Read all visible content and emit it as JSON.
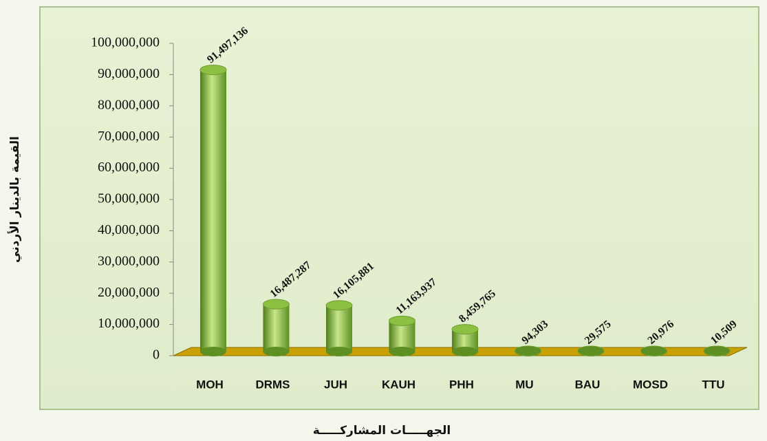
{
  "chart_data": {
    "type": "bar",
    "y_label": "القيمة بالدينار الأردني",
    "x_label": "الجهـــــات المشاركـــــة",
    "categories": [
      "MOH",
      "DRMS",
      "JUH",
      "KAUH",
      "PHH",
      "MU",
      "BAU",
      "MOSD",
      "TTU"
    ],
    "values": [
      91497136,
      16487287,
      16105881,
      11163937,
      8459765,
      94303,
      29575,
      20976,
      10509
    ],
    "value_labels": [
      "91,497,136",
      "16,487,287",
      "16,105,881",
      "11,163,937",
      "8,459,765",
      "94,303",
      "29,575",
      "20,976",
      "10,509"
    ],
    "color": "#8cc043",
    "ylim": [
      0,
      100000000
    ],
    "yticks": [
      {
        "value": 0,
        "label": "0"
      },
      {
        "value": 10000000,
        "label": "10,000,000"
      },
      {
        "value": 20000000,
        "label": "20,000,000"
      },
      {
        "value": 30000000,
        "label": "30,000,000"
      },
      {
        "value": 40000000,
        "label": "40,000,000"
      },
      {
        "value": 50000000,
        "label": "50,000,000"
      },
      {
        "value": 60000000,
        "label": "60,000,000"
      },
      {
        "value": 70000000,
        "label": "70,000,000"
      },
      {
        "value": 80000000,
        "label": "80,000,000"
      },
      {
        "value": 90000000,
        "label": "90,000,000"
      },
      {
        "value": 100000000,
        "label": "100,000,000"
      }
    ],
    "grid": false
  }
}
